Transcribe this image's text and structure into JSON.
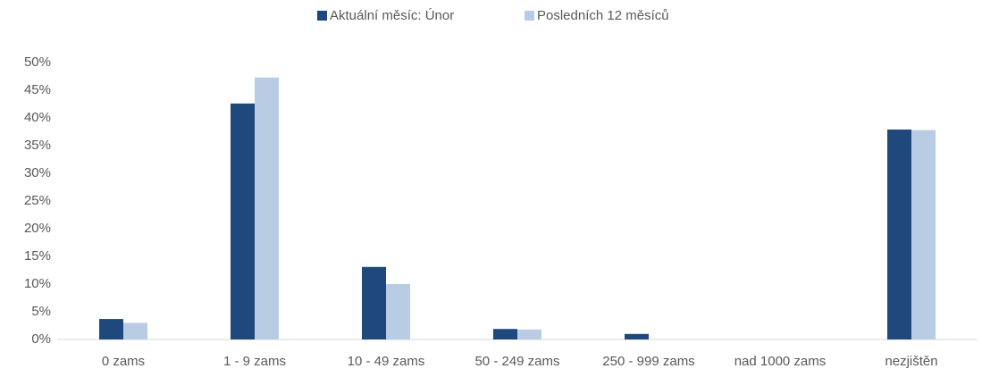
{
  "chart_data": {
    "type": "bar",
    "categories": [
      "0 zams",
      "1 - 9 zams",
      "10 - 49 zams",
      "50 - 249 zams",
      "250 - 999 zams",
      "nad 1000 zams",
      "nezjištěn"
    ],
    "series": [
      {
        "name": "Aktuální měsíc: Únor",
        "color": "#1f497d",
        "values": [
          3.7,
          42.6,
          13.1,
          1.9,
          1.0,
          0,
          37.9
        ]
      },
      {
        "name": "Posledních 12 měsíců",
        "color": "#b8cce4",
        "values": [
          3.0,
          47.3,
          10.0,
          1.8,
          0,
          0,
          37.8
        ]
      }
    ],
    "ylim": [
      0,
      50
    ],
    "yticks": [
      {
        "value": 0,
        "label": "0%"
      },
      {
        "value": 5,
        "label": "5%"
      },
      {
        "value": 10,
        "label": "10%"
      },
      {
        "value": 15,
        "label": "15%"
      },
      {
        "value": 20,
        "label": "20%"
      },
      {
        "value": 25,
        "label": "25%"
      },
      {
        "value": 30,
        "label": "30%"
      },
      {
        "value": 35,
        "label": "35%"
      },
      {
        "value": 40,
        "label": "40%"
      },
      {
        "value": 45,
        "label": "45%"
      },
      {
        "value": 50,
        "label": "50%"
      }
    ],
    "grid": false,
    "legend": "top"
  }
}
